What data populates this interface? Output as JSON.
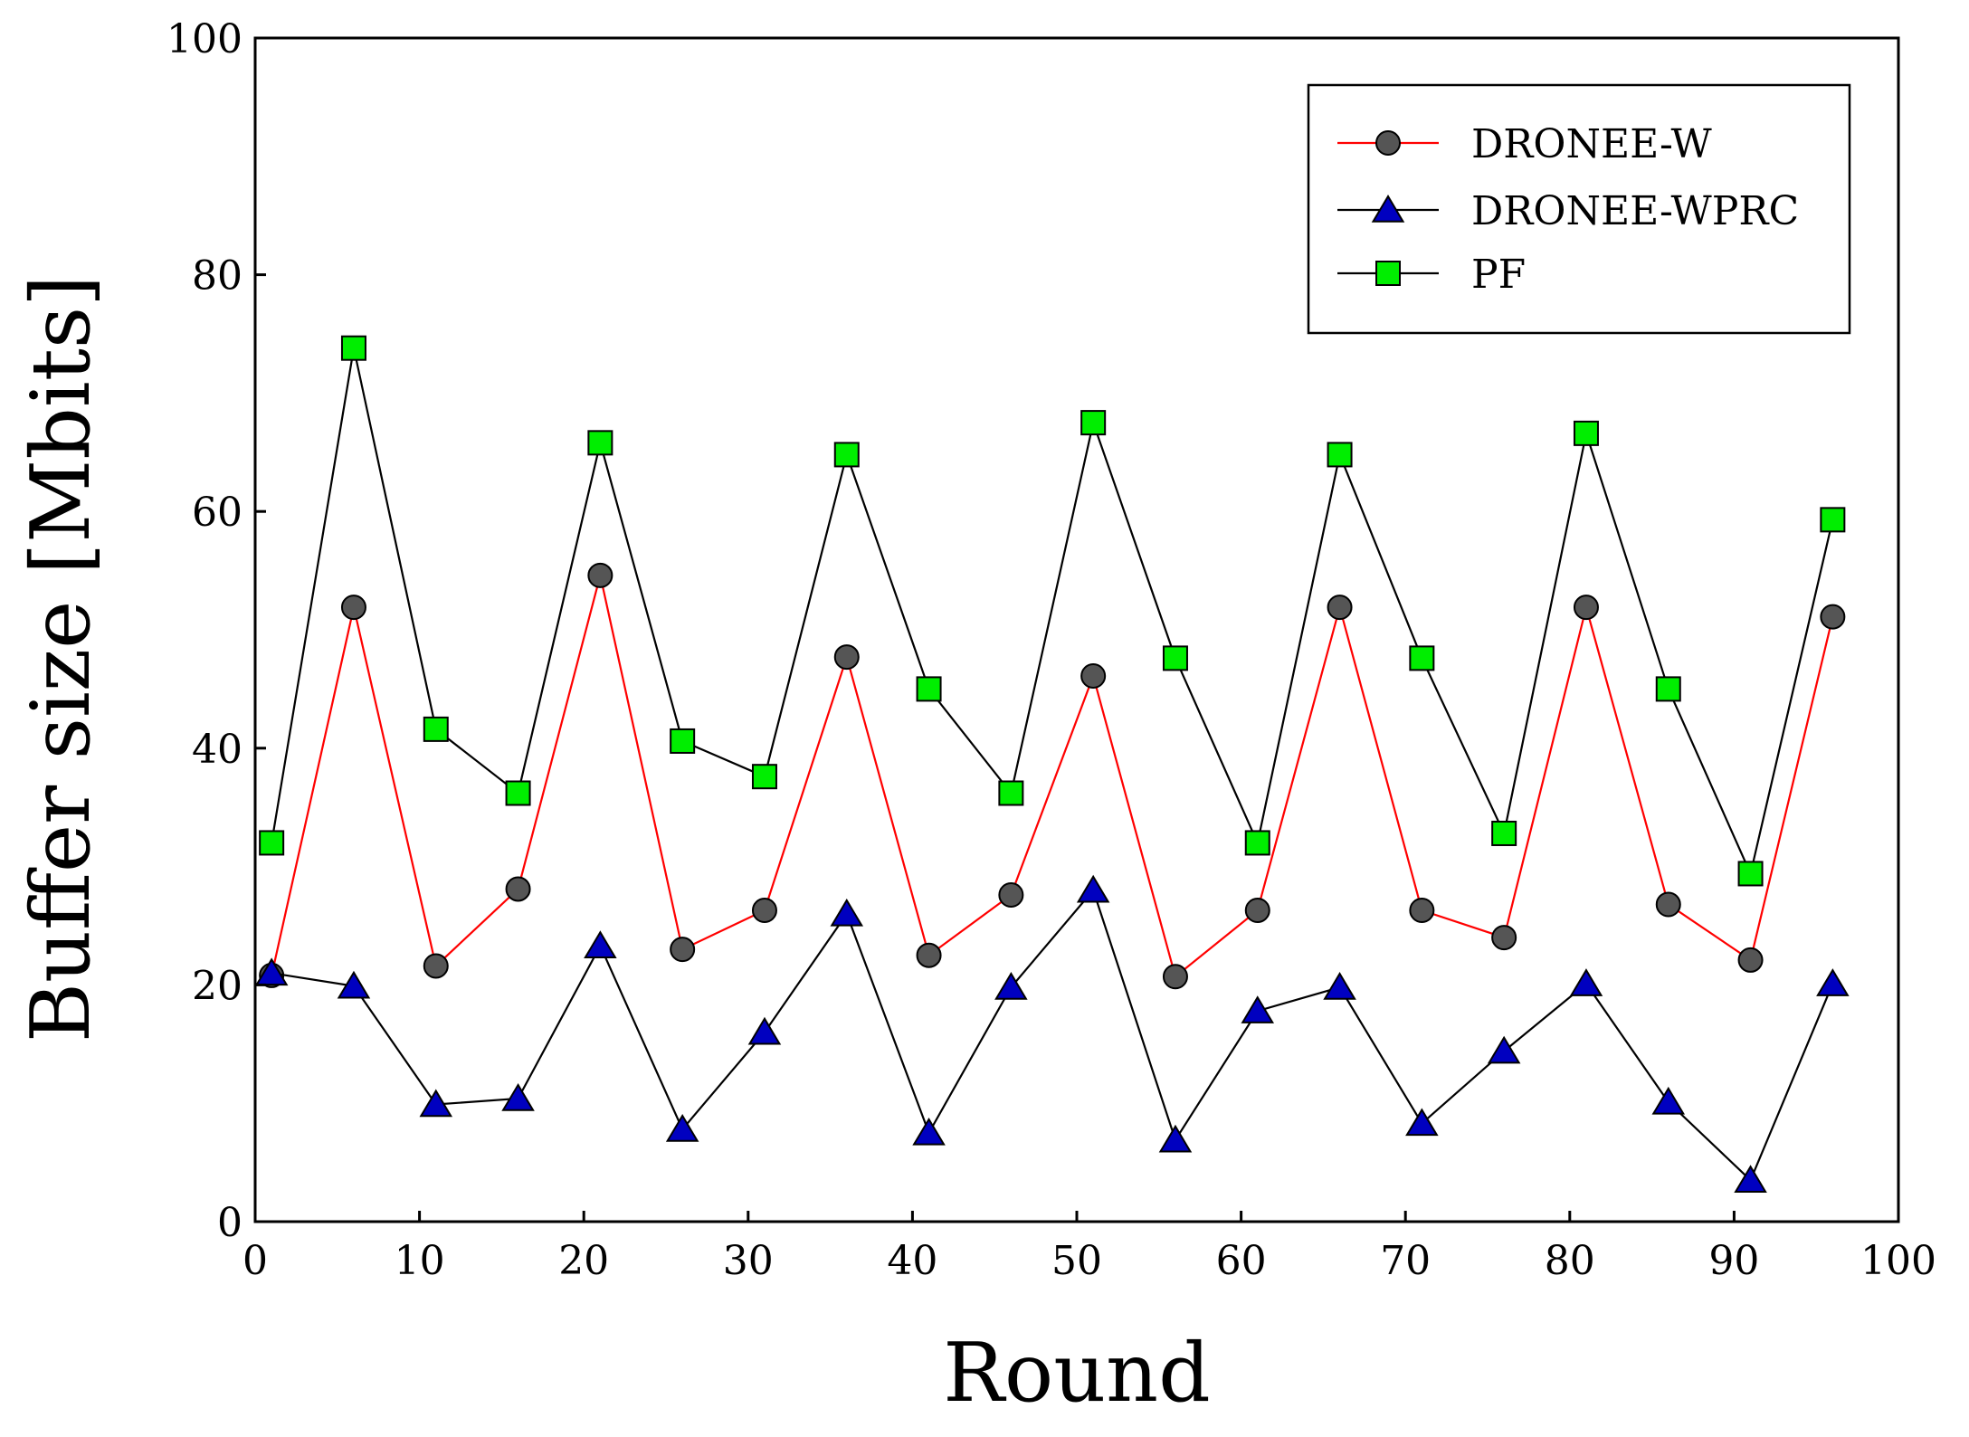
{
  "chart_data": {
    "type": "line",
    "title": "",
    "xlabel": "Round",
    "ylabel": "Buffer size [Mbits]",
    "xlim": [
      0,
      100
    ],
    "ylim": [
      0,
      100
    ],
    "xticks": [
      "0",
      "10",
      "20",
      "30",
      "40",
      "50",
      "60",
      "70",
      "80",
      "90",
      "100"
    ],
    "yticks": [
      "0",
      "20",
      "40",
      "60",
      "80",
      "100"
    ],
    "grid": false,
    "legend_position": "top-right",
    "x": [
      1,
      6,
      11,
      16,
      21,
      26,
      31,
      36,
      41,
      46,
      51,
      56,
      61,
      66,
      71,
      76,
      81,
      86,
      91,
      96
    ],
    "series": [
      {
        "name": "DRONEE-W",
        "line_color": "#ff0000",
        "marker": "circle",
        "marker_fill": "#555555",
        "values": [
          20.8,
          51.9,
          21.6,
          28.1,
          54.6,
          23.0,
          26.3,
          47.7,
          22.5,
          27.6,
          46.1,
          20.7,
          26.3,
          51.9,
          26.3,
          24.0,
          51.9,
          26.8,
          22.1,
          51.1
        ]
      },
      {
        "name": "DRONEE-WPRC",
        "line_color": "#000000",
        "marker": "triangle",
        "marker_fill": "#0000c0",
        "values": [
          21.0,
          19.9,
          9.9,
          10.4,
          23.3,
          7.8,
          16.0,
          26.0,
          7.5,
          19.8,
          28.0,
          6.9,
          17.8,
          19.8,
          8.3,
          14.4,
          20.1,
          10.1,
          3.5,
          20.1
        ]
      },
      {
        "name": "PF",
        "line_color": "#000000",
        "marker": "square",
        "marker_fill": "#00ee00",
        "values": [
          32.0,
          73.8,
          41.6,
          36.2,
          65.8,
          40.6,
          37.6,
          64.8,
          45.0,
          36.2,
          67.5,
          47.6,
          32.0,
          64.8,
          47.6,
          32.8,
          66.6,
          45.0,
          29.4,
          59.3
        ]
      }
    ]
  }
}
